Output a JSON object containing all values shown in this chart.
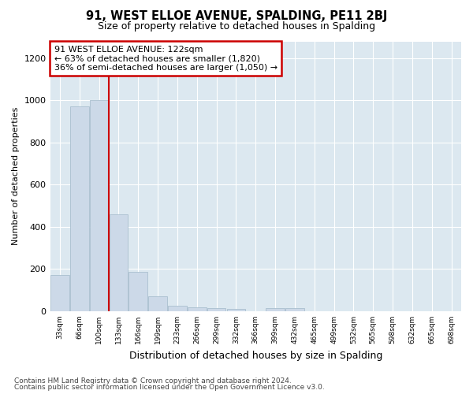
{
  "title1": "91, WEST ELLOE AVENUE, SPALDING, PE11 2BJ",
  "title2": "Size of property relative to detached houses in Spalding",
  "xlabel": "Distribution of detached houses by size in Spalding",
  "ylabel": "Number of detached properties",
  "categories": [
    "33sqm",
    "66sqm",
    "100sqm",
    "133sqm",
    "166sqm",
    "199sqm",
    "233sqm",
    "266sqm",
    "299sqm",
    "332sqm",
    "366sqm",
    "399sqm",
    "432sqm",
    "465sqm",
    "499sqm",
    "532sqm",
    "565sqm",
    "598sqm",
    "632sqm",
    "665sqm",
    "698sqm"
  ],
  "values": [
    170,
    970,
    1000,
    460,
    185,
    70,
    25,
    20,
    15,
    10,
    0,
    15,
    15,
    0,
    0,
    0,
    0,
    0,
    0,
    0,
    0
  ],
  "bar_color": "#ccd9e8",
  "bar_edge_color": "#aabfcf",
  "property_line_index": 3,
  "annotation_line0": "91 WEST ELLOE AVENUE: 122sqm",
  "annotation_line1": "← 63% of detached houses are smaller (1,820)",
  "annotation_line2": "36% of semi-detached houses are larger (1,050) →",
  "annotation_box_color": "#ffffff",
  "annotation_box_edge": "#cc0000",
  "line_color": "#cc0000",
  "ylim": [
    0,
    1280
  ],
  "yticks": [
    0,
    200,
    400,
    600,
    800,
    1000,
    1200
  ],
  "fig_bg": "#ffffff",
  "plot_bg": "#dce8f0",
  "grid_color": "#ffffff",
  "footer1": "Contains HM Land Registry data © Crown copyright and database right 2024.",
  "footer2": "Contains public sector information licensed under the Open Government Licence v3.0."
}
